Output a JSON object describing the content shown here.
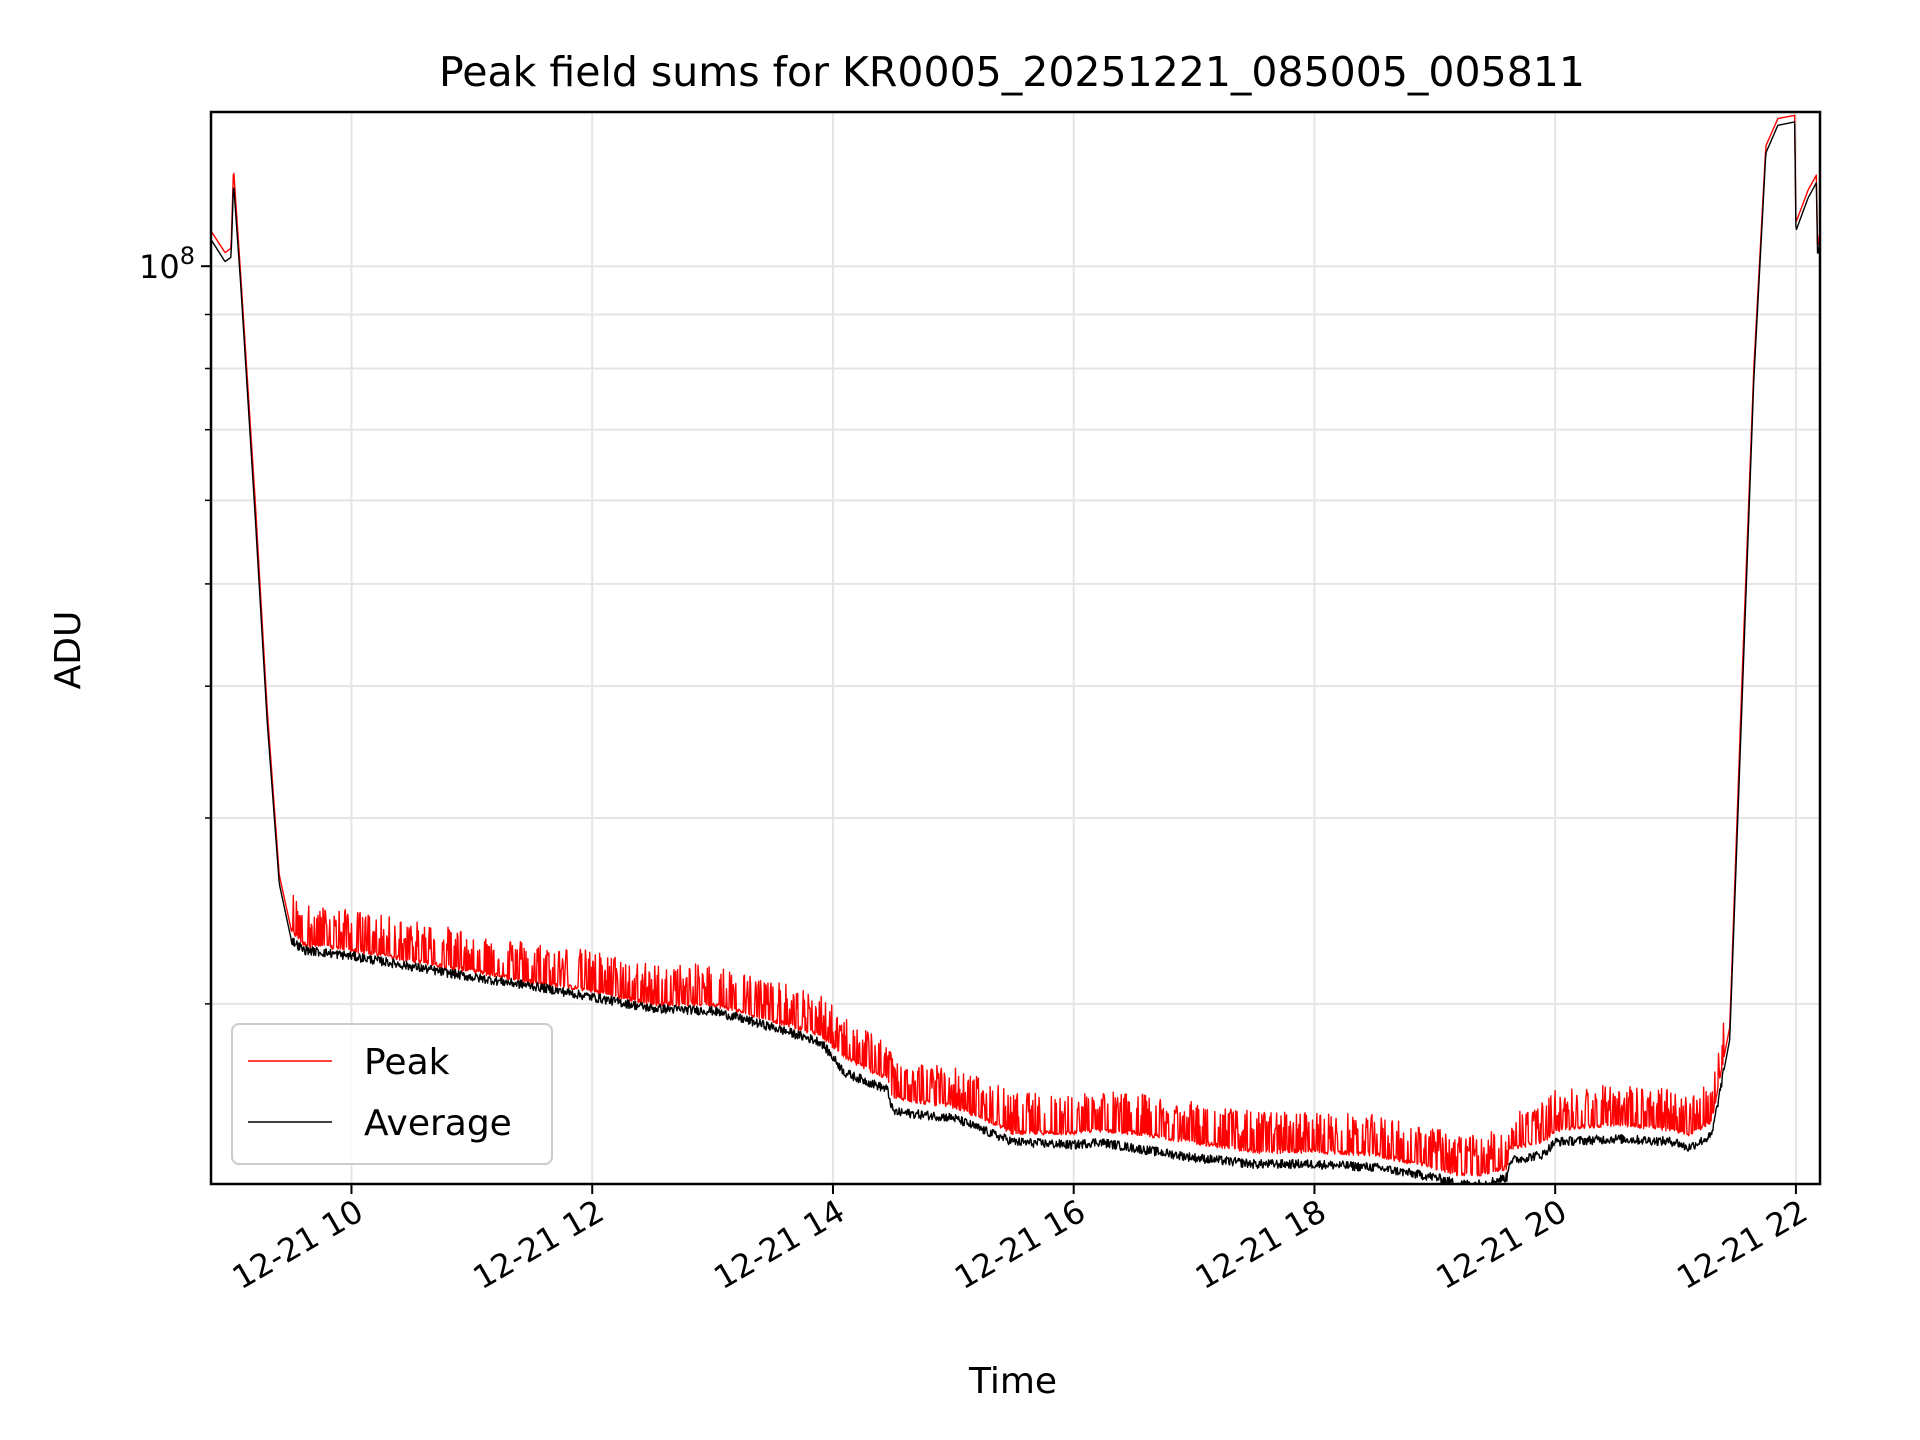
{
  "chart_data": {
    "type": "line",
    "title": "Peak field sums for KR0005_20251221_085005_005811",
    "xlabel": "Time",
    "ylabel": "ADU",
    "yscale": "log",
    "ylim": [
      13500000,
      140000000
    ],
    "xlim_hours": [
      8.833,
      22.2
    ],
    "grid": true,
    "legend_position": "lower-left",
    "x_ticks": [
      {
        "hour": 10,
        "label": "12-21 10"
      },
      {
        "hour": 12,
        "label": "12-21 12"
      },
      {
        "hour": 14,
        "label": "12-21 14"
      },
      {
        "hour": 16,
        "label": "12-21 16"
      },
      {
        "hour": 18,
        "label": "12-21 18"
      },
      {
        "hour": 20,
        "label": "12-21 20"
      },
      {
        "hour": 22,
        "label": "12-21 22"
      }
    ],
    "y_major_ticks": [
      {
        "value": 100000000,
        "base": "10",
        "exp": "8"
      }
    ],
    "y_minor_ticks": [
      20000000,
      30000000,
      40000000,
      50000000,
      60000000,
      70000000,
      80000000,
      90000000
    ],
    "series": [
      {
        "name": "Peak",
        "color": "#ff0000",
        "baseline": [
          [
            8.833,
            108000000
          ],
          [
            8.95,
            103000000
          ],
          [
            9.0,
            104000000
          ],
          [
            9.02,
            124000000
          ],
          [
            9.08,
            98000000
          ],
          [
            9.2,
            60000000
          ],
          [
            9.3,
            38000000
          ],
          [
            9.4,
            26500000
          ],
          [
            9.5,
            23500000
          ],
          [
            9.6,
            22800000
          ],
          [
            10.0,
            22500000
          ],
          [
            10.5,
            22000000
          ],
          [
            11.0,
            21500000
          ],
          [
            11.5,
            21000000
          ],
          [
            12.0,
            20600000
          ],
          [
            12.5,
            20000000
          ],
          [
            13.0,
            20000000
          ],
          [
            13.5,
            19300000
          ],
          [
            13.9,
            18700000
          ],
          [
            14.1,
            17800000
          ],
          [
            14.45,
            17000000
          ],
          [
            14.5,
            16300000
          ],
          [
            15.0,
            16000000
          ],
          [
            15.3,
            15500000
          ],
          [
            15.5,
            15100000
          ],
          [
            16.0,
            15100000
          ],
          [
            16.2,
            15200000
          ],
          [
            16.5,
            15100000
          ],
          [
            17.0,
            14800000
          ],
          [
            17.5,
            14500000
          ],
          [
            18.0,
            14500000
          ],
          [
            18.5,
            14400000
          ],
          [
            19.0,
            14000000
          ],
          [
            19.2,
            13800000
          ],
          [
            19.4,
            13800000
          ],
          [
            19.6,
            14000000
          ],
          [
            19.62,
            14600000
          ],
          [
            19.9,
            14800000
          ],
          [
            20.0,
            15200000
          ],
          [
            20.5,
            15400000
          ],
          [
            21.0,
            15200000
          ],
          [
            21.1,
            15000000
          ],
          [
            21.3,
            15500000
          ],
          [
            21.45,
            19000000
          ],
          [
            21.55,
            40000000
          ],
          [
            21.65,
            80000000
          ],
          [
            21.75,
            130000000
          ],
          [
            21.85,
            138000000
          ],
          [
            21.99,
            139000000
          ],
          [
            22.0,
            110000000
          ],
          [
            22.1,
            118000000
          ],
          [
            22.17,
            122000000
          ],
          [
            22.18,
            104000000
          ],
          [
            22.2,
            108000000
          ]
        ],
        "spike_ranges": [
          [
            9.5,
            21.4
          ]
        ],
        "spike_height_ratio": 1.07
      },
      {
        "name": "Average",
        "color": "#000000",
        "baseline": [
          [
            8.833,
            106000000
          ],
          [
            8.95,
            101000000
          ],
          [
            9.0,
            102000000
          ],
          [
            9.02,
            120000000
          ],
          [
            9.08,
            96000000
          ],
          [
            9.2,
            58000000
          ],
          [
            9.3,
            37000000
          ],
          [
            9.4,
            26000000
          ],
          [
            9.5,
            23000000
          ],
          [
            9.6,
            22500000
          ],
          [
            10.0,
            22200000
          ],
          [
            10.5,
            21700000
          ],
          [
            11.0,
            21200000
          ],
          [
            11.5,
            20800000
          ],
          [
            12.0,
            20300000
          ],
          [
            12.5,
            19800000
          ],
          [
            13.0,
            19700000
          ],
          [
            13.5,
            19000000
          ],
          [
            13.9,
            18400000
          ],
          [
            14.1,
            17200000
          ],
          [
            14.45,
            16600000
          ],
          [
            14.5,
            15800000
          ],
          [
            15.0,
            15600000
          ],
          [
            15.3,
            15100000
          ],
          [
            15.5,
            14800000
          ],
          [
            16.0,
            14700000
          ],
          [
            16.2,
            14800000
          ],
          [
            16.5,
            14600000
          ],
          [
            17.0,
            14300000
          ],
          [
            17.5,
            14100000
          ],
          [
            18.0,
            14100000
          ],
          [
            18.5,
            14000000
          ],
          [
            19.0,
            13700000
          ],
          [
            19.2,
            13500000
          ],
          [
            19.4,
            13500000
          ],
          [
            19.6,
            13700000
          ],
          [
            19.62,
            14200000
          ],
          [
            19.9,
            14400000
          ],
          [
            20.0,
            14800000
          ],
          [
            20.5,
            14900000
          ],
          [
            21.0,
            14800000
          ],
          [
            21.1,
            14600000
          ],
          [
            21.3,
            15000000
          ],
          [
            21.45,
            18500000
          ],
          [
            21.55,
            38000000
          ],
          [
            21.65,
            78000000
          ],
          [
            21.75,
            128000000
          ],
          [
            21.85,
            136000000
          ],
          [
            21.99,
            137000000
          ],
          [
            22.0,
            108000000
          ],
          [
            22.1,
            116000000
          ],
          [
            22.17,
            120000000
          ],
          [
            22.18,
            102000000
          ],
          [
            22.2,
            106000000
          ]
        ],
        "noise_ratio": 0.02
      }
    ]
  }
}
